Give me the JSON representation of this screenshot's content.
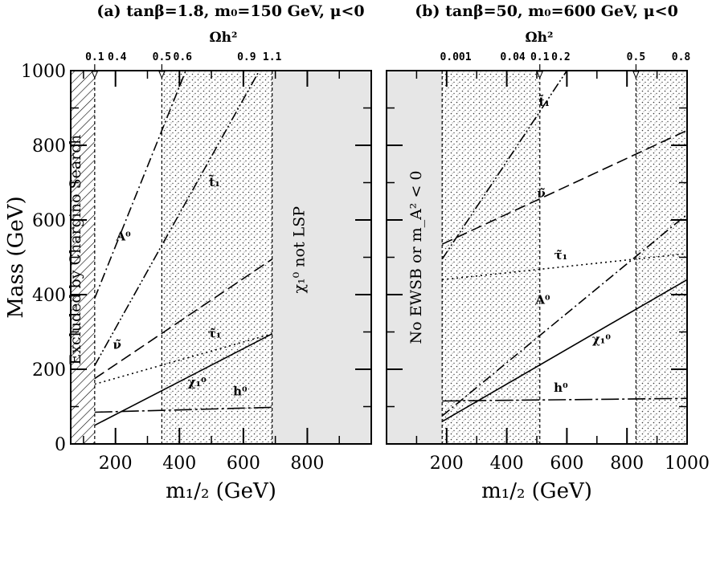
{
  "chart_data": [
    {
      "type": "line",
      "panel": "a",
      "title": "(a) tanβ=1.8, m₀=150 GeV, μ<0",
      "xlabel": "m₁/₂ (GeV)",
      "ylabel": "Mass (GeV)",
      "top_axis_label": "Ωh²",
      "xlim": [
        60,
        1000
      ],
      "ylim": [
        0,
        1000
      ],
      "xticks": [
        200,
        400,
        600,
        800
      ],
      "yticks": [
        0,
        200,
        400,
        600,
        800,
        1000
      ],
      "top_ticks": [
        {
          "label": "0.1",
          "x": 135,
          "arrow": true
        },
        {
          "label": "0.4",
          "x": 205
        },
        {
          "label": "0.5",
          "x": 345,
          "arrow": true
        },
        {
          "label": "0.6",
          "x": 410
        },
        {
          "label": "0.9",
          "x": 610
        },
        {
          "label": "1.1",
          "x": 690
        }
      ],
      "vlines": [
        135,
        345,
        690
      ],
      "regions": [
        {
          "name": "Excluded by Chargino Search",
          "x": [
            60,
            135
          ],
          "style": "hatch"
        },
        {
          "name": "dense",
          "x": [
            345,
            690
          ],
          "style": "dots"
        },
        {
          "name": "χ₁⁰ not LSP",
          "x": [
            690,
            1000
          ],
          "style": "gray"
        }
      ],
      "series": [
        {
          "name": "A⁰",
          "style": "dashdot",
          "x": [
            135,
            420
          ],
          "y": [
            390,
            1000
          ]
        },
        {
          "name": "t̃₁",
          "style": "dashdotdot",
          "x": [
            135,
            650
          ],
          "y": [
            210,
            1000
          ]
        },
        {
          "name": "ν̃",
          "style": "dash",
          "x": [
            135,
            690
          ],
          "y": [
            175,
            495
          ]
        },
        {
          "name": "τ̃₁",
          "style": "dot",
          "x": [
            135,
            690
          ],
          "y": [
            160,
            295
          ]
        },
        {
          "name": "χ₁⁰",
          "style": "solid",
          "x": [
            135,
            690
          ],
          "y": [
            50,
            295
          ]
        },
        {
          "name": "h⁰",
          "style": "longdash",
          "x": [
            135,
            690
          ],
          "y": [
            85,
            98
          ]
        }
      ],
      "labels": [
        {
          "text": "A⁰",
          "x": 225,
          "y": 545
        },
        {
          "text": "t̃₁",
          "x": 510,
          "y": 690
        },
        {
          "text": "ν̃",
          "x": 205,
          "y": 255
        },
        {
          "text": "τ̃₁",
          "x": 510,
          "y": 285
        },
        {
          "text": "χ₁⁰",
          "x": 455,
          "y": 155
        },
        {
          "text": "h⁰",
          "x": 590,
          "y": 130
        }
      ],
      "region_labels": [
        {
          "text": "Excluded by Chargino Search",
          "x": 90,
          "y": 520,
          "rotate": -90
        },
        {
          "text": "χ₁⁰ not LSP",
          "x": 790,
          "y": 520,
          "rotate": -90
        }
      ]
    },
    {
      "type": "line",
      "panel": "b",
      "title": "(b) tanβ=50, m₀=600 GeV, μ<0",
      "xlabel": "m₁/₂ (GeV)",
      "ylabel": "",
      "top_axis_label": "Ωh²",
      "xlim": [
        0,
        1000
      ],
      "ylim": [
        0,
        1000
      ],
      "xticks": [
        200,
        400,
        600,
        800,
        1000
      ],
      "yticks": [
        0,
        200,
        400,
        600,
        800,
        1000
      ],
      "top_ticks": [
        {
          "label": "0.001",
          "x": 230
        },
        {
          "label": "0.04",
          "x": 420
        },
        {
          "label": "0.1",
          "x": 510,
          "arrow": true
        },
        {
          "label": "0.2",
          "x": 580
        },
        {
          "label": "0.5",
          "x": 830,
          "arrow": true
        },
        {
          "label": "0.8",
          "x": 980
        }
      ],
      "vlines": [
        185,
        510,
        830
      ],
      "regions": [
        {
          "name": "No EWSB or m_A² < 0",
          "x": [
            0,
            185
          ],
          "style": "gray"
        },
        {
          "name": "dense",
          "x": [
            185,
            510
          ],
          "style": "dots"
        },
        {
          "name": "dense",
          "x": [
            830,
            1000
          ],
          "style": "dots"
        }
      ],
      "series": [
        {
          "name": "t̃₁",
          "style": "dashdotdot",
          "x": [
            185,
            600
          ],
          "y": [
            495,
            1000
          ]
        },
        {
          "name": "ν̃",
          "style": "dash",
          "x": [
            185,
            1000
          ],
          "y": [
            535,
            840
          ]
        },
        {
          "name": "τ̃₁",
          "style": "dot",
          "x": [
            185,
            1000
          ],
          "y": [
            440,
            510
          ]
        },
        {
          "name": "A⁰",
          "style": "dashdot",
          "x": [
            185,
            1000
          ],
          "y": [
            75,
            615
          ]
        },
        {
          "name": "χ₁⁰",
          "style": "solid",
          "x": [
            185,
            1000
          ],
          "y": [
            60,
            440
          ]
        },
        {
          "name": "h⁰",
          "style": "longdash",
          "x": [
            185,
            1000
          ],
          "y": [
            115,
            122
          ]
        }
      ],
      "labels": [
        {
          "text": "t̃₁",
          "x": 525,
          "y": 905
        },
        {
          "text": "ν̃",
          "x": 515,
          "y": 660
        },
        {
          "text": "τ̃₁",
          "x": 580,
          "y": 495
        },
        {
          "text": "A⁰",
          "x": 520,
          "y": 375
        },
        {
          "text": "χ₁⁰",
          "x": 715,
          "y": 270
        },
        {
          "text": "h⁰",
          "x": 580,
          "y": 140
        }
      ],
      "region_labels": [
        {
          "text": "No EWSB or m_A² < 0",
          "x": 115,
          "y": 500,
          "rotate": -90
        }
      ]
    }
  ]
}
